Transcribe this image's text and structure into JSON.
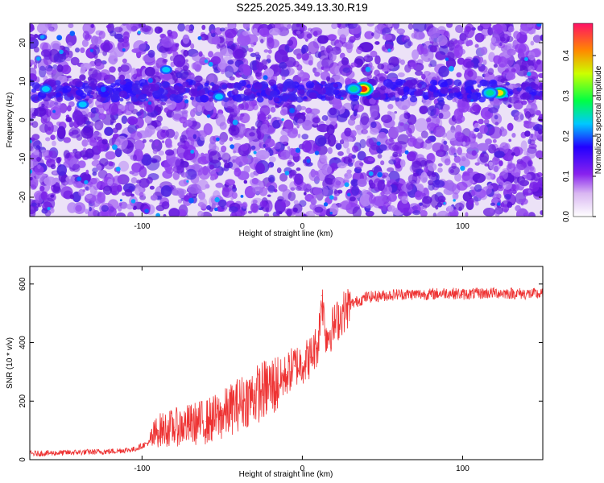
{
  "title": "S225.2025.349.13.30.R19",
  "chart_data": [
    {
      "type": "heatmap",
      "xlabel": "Height of straight line (km)",
      "ylabel": "Frequency (Hz)",
      "xlim": [
        -170,
        150
      ],
      "ylim": [
        -25,
        25
      ],
      "xticks": [
        -100,
        0,
        100
      ],
      "yticks": [
        -20,
        -10,
        0,
        10,
        20
      ],
      "colorbar": {
        "label": "Normalized spectral amplitude",
        "range": [
          0.0,
          0.48
        ],
        "ticks": [
          0.0,
          0.1,
          0.2,
          0.3,
          0.4
        ]
      },
      "ridge": {
        "frequency_hz": 7.5,
        "note": "persistent band of higher amplitude near 7-8 Hz",
        "hotspots": [
          {
            "x": 38,
            "y": 8,
            "amplitude": 0.38
          },
          {
            "x": 123,
            "y": 7,
            "amplitude": 0.3
          },
          {
            "x": 32,
            "y": 8,
            "amplitude": 0.12
          },
          {
            "x": 117,
            "y": 7,
            "amplitude": 0.12
          },
          {
            "x": -52,
            "y": 6,
            "amplitude": 0.1
          },
          {
            "x": -137,
            "y": 4,
            "amplitude": 0.1
          },
          {
            "x": -85,
            "y": 13,
            "amplitude": 0.08
          },
          {
            "x": -160,
            "y": 8,
            "amplitude": 0.08
          }
        ]
      }
    },
    {
      "type": "line",
      "xlabel": "Height of straight line (km)",
      "ylabel": "SNR (10 * v/v)",
      "xlim": [
        -170,
        150
      ],
      "ylim": [
        0,
        660
      ],
      "xticks": [
        -100,
        0,
        100
      ],
      "yticks": [
        0,
        200,
        400,
        600
      ],
      "series": [
        {
          "name": "SNR",
          "color": "#ee3333",
          "x": [
            -170,
            -140,
            -120,
            -105,
            -95,
            -90,
            -80,
            -70,
            -60,
            -50,
            -40,
            -30,
            -20,
            -15,
            -10,
            -5,
            0,
            5,
            10,
            12,
            15,
            20,
            25,
            30,
            40,
            50,
            60,
            80,
            90,
            100,
            120,
            150
          ],
          "y": [
            20,
            25,
            28,
            35,
            60,
            100,
            110,
            120,
            130,
            150,
            190,
            220,
            250,
            260,
            290,
            320,
            330,
            350,
            400,
            560,
            420,
            460,
            500,
            530,
            555,
            560,
            565,
            565,
            570,
            565,
            570,
            565
          ]
        }
      ]
    }
  ]
}
